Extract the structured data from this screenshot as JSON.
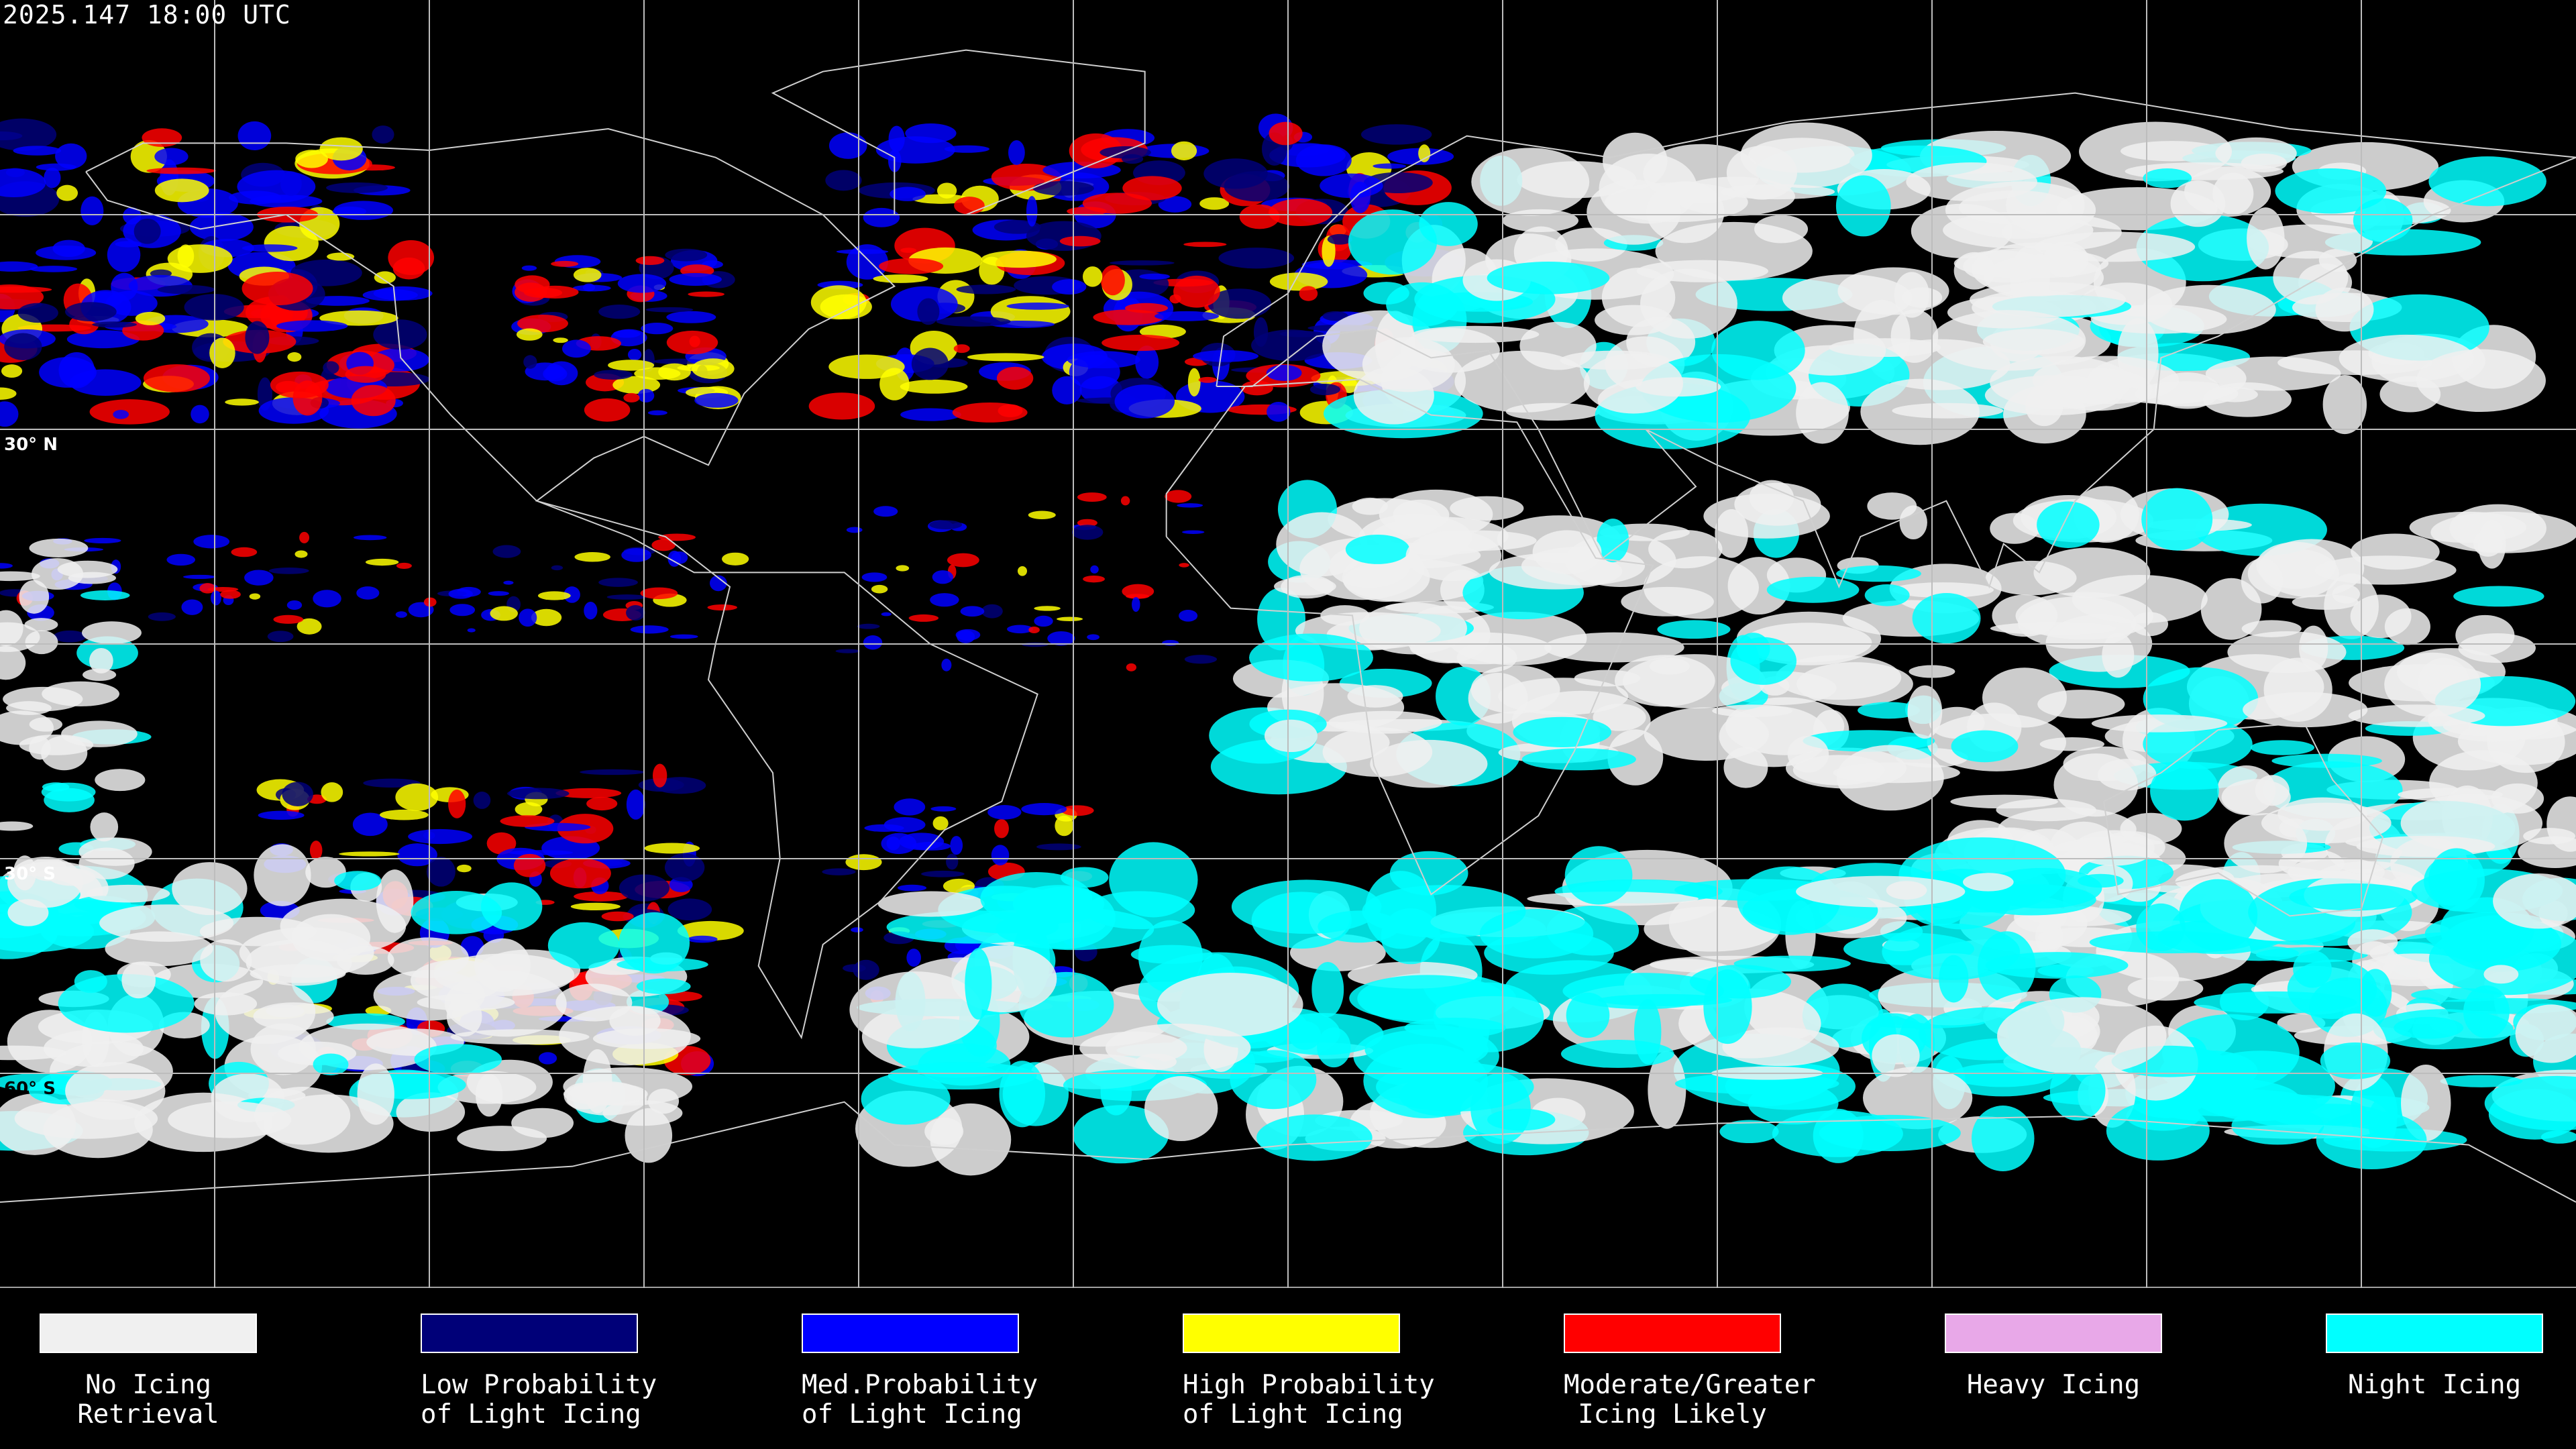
{
  "title": "2025.147 18:00 UTC",
  "latitude_labels": [
    {
      "label": "30° N",
      "lat": 30
    },
    {
      "label": "30° S",
      "lat": -30
    },
    {
      "label": "60° S",
      "lat": -60
    }
  ],
  "graticule_spacing_deg": 30,
  "legend": [
    {
      "line1": "No Icing",
      "line2": "Retrieval",
      "color": "#f0f0f0"
    },
    {
      "line1": "Low Probability",
      "line2": "of Light Icing",
      "color": "#000078"
    },
    {
      "line1": "Med.Probability",
      "line2": "of Light Icing",
      "color": "#0000ff"
    },
    {
      "line1": "High Probability",
      "line2": "of Light Icing",
      "color": "#ffff00"
    },
    {
      "line1": "Moderate/Greater",
      "line2": "Icing Likely",
      "color": "#ff0000"
    },
    {
      "line1": "Heavy Icing",
      "line2": "",
      "color": "#e8a8e8"
    },
    {
      "line1": "Night Icing",
      "line2": "",
      "color": "#00ffff"
    }
  ]
}
